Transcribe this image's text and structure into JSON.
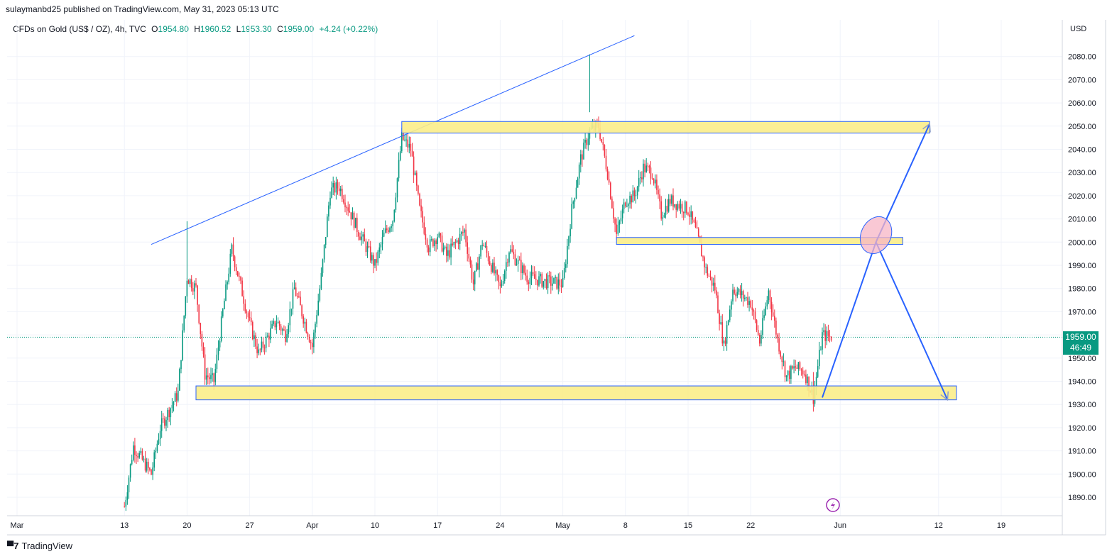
{
  "header": {
    "published": "sulaymanbd25 published on TradingView.com, May 31, 2023 05:13 UTC"
  },
  "legend": {
    "symbol": "CFDs on Gold (US$ / OZ), 4h, TVC",
    "open_label": "O",
    "open": "1954.80",
    "high_label": "H",
    "high": "1960.52",
    "low_label": "L",
    "low": "1953.30",
    "close_label": "C",
    "close": "1959.00",
    "change": "+4.24 (+0.22%)"
  },
  "price_badge": {
    "price": "1959.00",
    "countdown": "46:49"
  },
  "footer": {
    "brand": "TradingView"
  },
  "colors": {
    "up": "#089981",
    "down": "#f23645",
    "zone_fill": "#fbed8a",
    "zone_border": "#2962ff",
    "line": "#2962ff"
  },
  "chart_data": {
    "type": "candlestick",
    "currency": "USD",
    "y_ticks": [
      1890,
      1900,
      1910,
      1920,
      1930,
      1940,
      1950,
      1960,
      1970,
      1980,
      1990,
      2000,
      2010,
      2020,
      2030,
      2040,
      2050,
      2060,
      2070,
      2080
    ],
    "ylim": [
      1883,
      2097
    ],
    "x_ticks": [
      "Mar",
      "13",
      "20",
      "27",
      "Apr",
      "10",
      "17",
      "24",
      "May",
      "8",
      "15",
      "22",
      "Jun",
      "12",
      "19"
    ],
    "x_tick_dates": [
      "2023-03-01",
      "2023-03-13",
      "2023-03-20",
      "2023-03-27",
      "2023-04-03",
      "2023-04-10",
      "2023-04-17",
      "2023-04-24",
      "2023-05-01",
      "2023-05-08",
      "2023-05-15",
      "2023-05-22",
      "2023-06-01",
      "2023-06-12",
      "2023-06-19"
    ],
    "current_price": 1959.0,
    "price_path": [
      [
        "2023-03-13",
        1886
      ],
      [
        "2023-03-14",
        1912
      ],
      [
        "2023-03-16",
        1900
      ],
      [
        "2023-03-17",
        1920
      ],
      [
        "2023-03-19",
        1935
      ],
      [
        "2023-03-20",
        1985
      ],
      [
        "2023-03-21",
        1980
      ],
      [
        "2023-03-22",
        1943
      ],
      [
        "2023-03-23",
        1940
      ],
      [
        "2023-03-24",
        1970
      ],
      [
        "2023-03-25",
        1997
      ],
      [
        "2023-03-27",
        1965
      ],
      [
        "2023-03-28",
        1952
      ],
      [
        "2023-03-30",
        1966
      ],
      [
        "2023-03-31",
        1960
      ],
      [
        "2023-04-01",
        1980
      ],
      [
        "2023-04-03",
        1955
      ],
      [
        "2023-04-04",
        1985
      ],
      [
        "2023-04-05",
        2022
      ],
      [
        "2023-04-06",
        2024
      ],
      [
        "2023-04-07",
        2015
      ],
      [
        "2023-04-08",
        2006
      ],
      [
        "2023-04-10",
        1990
      ],
      [
        "2023-04-11",
        2003
      ],
      [
        "2023-04-12",
        2010
      ],
      [
        "2023-04-13",
        2045
      ],
      [
        "2023-04-14",
        2040
      ],
      [
        "2023-04-15",
        2014
      ],
      [
        "2023-04-16",
        1998
      ],
      [
        "2023-04-17",
        2003
      ],
      [
        "2023-04-18",
        1994
      ],
      [
        "2023-04-20",
        2005
      ],
      [
        "2023-04-21",
        1982
      ],
      [
        "2023-04-22",
        2000
      ],
      [
        "2023-04-24",
        1980
      ],
      [
        "2023-04-25",
        1997
      ],
      [
        "2023-04-27",
        1985
      ],
      [
        "2023-04-29",
        1983
      ],
      [
        "2023-05-01",
        1982
      ],
      [
        "2023-05-02",
        2014
      ],
      [
        "2023-05-03",
        2036
      ],
      [
        "2023-05-04",
        2048
      ],
      [
        "2023-05-05",
        2050
      ],
      [
        "2023-05-06",
        2030
      ],
      [
        "2023-05-07",
        2003
      ],
      [
        "2023-05-08",
        2018
      ],
      [
        "2023-05-09",
        2020
      ],
      [
        "2023-05-10",
        2032
      ],
      [
        "2023-05-11",
        2030
      ],
      [
        "2023-05-12",
        2012
      ],
      [
        "2023-05-13",
        2018
      ],
      [
        "2023-05-15",
        2014
      ],
      [
        "2023-05-16",
        2003
      ],
      [
        "2023-05-17",
        1988
      ],
      [
        "2023-05-18",
        1980
      ],
      [
        "2023-05-19",
        1955
      ],
      [
        "2023-05-20",
        1980
      ],
      [
        "2023-05-22",
        1974
      ],
      [
        "2023-05-23",
        1957
      ],
      [
        "2023-05-24",
        1979
      ],
      [
        "2023-05-25",
        1958
      ],
      [
        "2023-05-26",
        1942
      ],
      [
        "2023-05-27",
        1946
      ],
      [
        "2023-05-28",
        1944
      ],
      [
        "2023-05-29",
        1933
      ],
      [
        "2023-05-30",
        1960
      ],
      [
        "2023-05-31",
        1959
      ]
    ],
    "wick_extremes": {
      "high": [
        [
          "2023-05-04",
          2081
        ],
        [
          "2023-03-20",
          2009
        ]
      ],
      "low": [
        [
          "2023-05-29",
          1932
        ]
      ]
    },
    "drawings": {
      "trendline": {
        "from": [
          "2023-03-16",
          1999
        ],
        "to": [
          "2023-05-09",
          2089
        ]
      },
      "zones": [
        {
          "from": "2023-04-13",
          "to": "2023-06-11",
          "top": 2052,
          "bottom": 2047
        },
        {
          "from": "2023-05-07",
          "to": "2023-06-08",
          "top": 2002,
          "bottom": 1999
        },
        {
          "from": "2023-03-21",
          "to": "2023-06-14",
          "top": 1938,
          "bottom": 1932
        }
      ],
      "projection": [
        [
          "2023-05-30",
          1933
        ],
        [
          "2023-06-05",
          2000
        ],
        [
          "2023-06-11",
          2051
        ]
      ],
      "alternate": [
        [
          "2023-06-05",
          2000
        ],
        [
          "2023-06-13",
          1932
        ]
      ],
      "ellipse_center": [
        "2023-06-05",
        2003
      ]
    }
  }
}
